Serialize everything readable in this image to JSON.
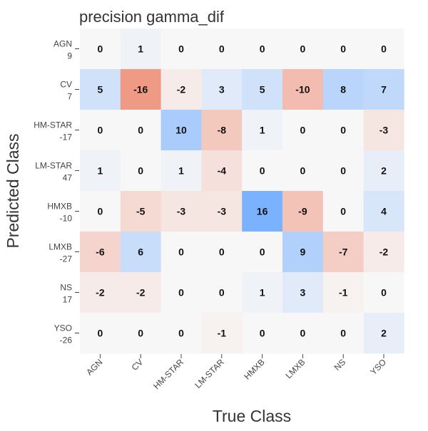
{
  "chart_data": {
    "type": "heatmap",
    "title": "precision gamma_dif",
    "xlabel": "True Class",
    "ylabel": "Predicted Class",
    "x_categories": [
      "AGN",
      "CV",
      "HM-STAR",
      "LM-STAR",
      "HMXB",
      "LMXB",
      "NS",
      "YSO"
    ],
    "y_categories": [
      "AGN",
      "CV",
      "HM-STAR",
      "LM-STAR",
      "HMXB",
      "LMXB",
      "NS",
      "YSO"
    ],
    "y_sublabels": [
      "9",
      "7",
      "-17",
      "47",
      "-10",
      "-27",
      "17",
      "-26"
    ],
    "values": [
      [
        0,
        1,
        0,
        0,
        0,
        0,
        0,
        0
      ],
      [
        5,
        -16,
        -2,
        3,
        5,
        -10,
        8,
        7
      ],
      [
        0,
        0,
        10,
        -8,
        1,
        0,
        0,
        -3
      ],
      [
        1,
        0,
        1,
        -4,
        0,
        0,
        0,
        2
      ],
      [
        0,
        -5,
        -3,
        -3,
        16,
        -9,
        0,
        4
      ],
      [
        -6,
        6,
        0,
        0,
        0,
        9,
        -7,
        -2
      ],
      [
        -2,
        -2,
        0,
        0,
        1,
        3,
        -1,
        0
      ],
      [
        0,
        0,
        0,
        -1,
        0,
        0,
        0,
        2
      ]
    ],
    "color_scale": {
      "zero": "#f7f7f7",
      "positive_max": "#7ab2ff",
      "negative_max": "#ef9a85",
      "abs_max": 16
    },
    "grid": false
  }
}
